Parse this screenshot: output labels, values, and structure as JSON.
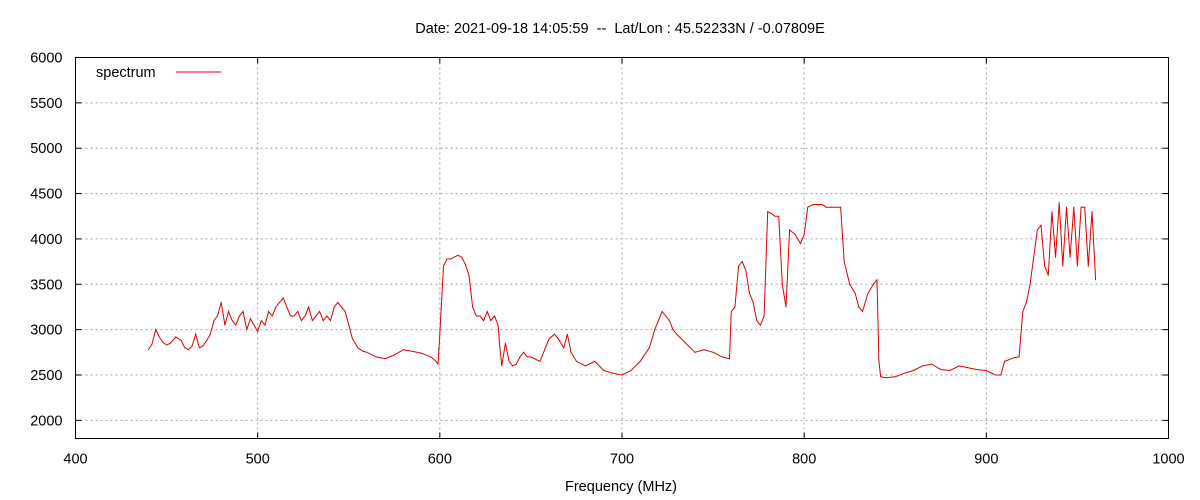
{
  "chart_data": {
    "type": "line",
    "title": "Date: 2021-09-18 14:05:59  --  Lat/Lon : 45.52233N / -0.07809E",
    "xlabel": "Frequency (MHz)",
    "ylabel": "",
    "xlim": [
      400,
      1000
    ],
    "ylim": [
      1800,
      6000
    ],
    "xticks": [
      400,
      500,
      600,
      700,
      800,
      900,
      1000
    ],
    "yticks": [
      2000,
      2500,
      3000,
      3500,
      4000,
      4500,
      5000,
      5500,
      6000
    ],
    "grid": true,
    "legend": {
      "position": "top-left"
    },
    "colors": {
      "series": "#dd0000"
    },
    "series": [
      {
        "name": "spectrum",
        "x": [
          440,
          442,
          444,
          446,
          448,
          450,
          452,
          455,
          458,
          460,
          462,
          464,
          466,
          468,
          470,
          472,
          474,
          476,
          478,
          480,
          482,
          484,
          486,
          488,
          490,
          492,
          494,
          496,
          498,
          500,
          502,
          504,
          506,
          508,
          510,
          512,
          514,
          516,
          518,
          520,
          522,
          524,
          526,
          528,
          530,
          532,
          534,
          536,
          538,
          540,
          542,
          544,
          546,
          548,
          550,
          552,
          555,
          558,
          560,
          565,
          570,
          575,
          580,
          585,
          590,
          595,
          598,
          599,
          600,
          602,
          604,
          606,
          608,
          610,
          612,
          614,
          616,
          618,
          620,
          622,
          624,
          626,
          628,
          630,
          632,
          633,
          634,
          636,
          638,
          640,
          642,
          644,
          646,
          648,
          650,
          655,
          660,
          663,
          665,
          668,
          670,
          672,
          675,
          680,
          685,
          690,
          695,
          700,
          705,
          710,
          715,
          718,
          720,
          722,
          724,
          726,
          728,
          730,
          735,
          740,
          745,
          750,
          755,
          759,
          760,
          762,
          764,
          766,
          768,
          770,
          772,
          774,
          776,
          778,
          780,
          782,
          784,
          786,
          788,
          790,
          792,
          795,
          798,
          800,
          802,
          805,
          808,
          810,
          812,
          815,
          818,
          820,
          822,
          825,
          828,
          830,
          832,
          835,
          838,
          840,
          841,
          842,
          845,
          850,
          855,
          860,
          865,
          870,
          875,
          880,
          885,
          890,
          895,
          900,
          905,
          908,
          910,
          915,
          918,
          920,
          922,
          924,
          926,
          928,
          930,
          932,
          934,
          936,
          938,
          940,
          942,
          944,
          946,
          948,
          950,
          952,
          954,
          956,
          958,
          960
        ],
        "values": [
          2780,
          2840,
          3000,
          2920,
          2860,
          2830,
          2850,
          2920,
          2880,
          2800,
          2780,
          2820,
          2950,
          2800,
          2820,
          2880,
          2950,
          3100,
          3150,
          3300,
          3050,
          3200,
          3100,
          3050,
          3150,
          3200,
          3000,
          3120,
          3050,
          2980,
          3100,
          3050,
          3200,
          3150,
          3250,
          3300,
          3350,
          3250,
          3150,
          3150,
          3200,
          3100,
          3150,
          3250,
          3100,
          3150,
          3200,
          3100,
          3150,
          3100,
          3250,
          3300,
          3250,
          3200,
          3050,
          2900,
          2800,
          2760,
          2750,
          2700,
          2680,
          2720,
          2780,
          2760,
          2740,
          2700,
          2650,
          2620,
          2950,
          3700,
          3780,
          3780,
          3800,
          3820,
          3800,
          3720,
          3600,
          3250,
          3150,
          3150,
          3100,
          3200,
          3100,
          3150,
          3050,
          2800,
          2600,
          2850,
          2650,
          2600,
          2620,
          2700,
          2750,
          2700,
          2700,
          2650,
          2900,
          2950,
          2900,
          2800,
          2950,
          2750,
          2650,
          2600,
          2650,
          2550,
          2520,
          2500,
          2550,
          2650,
          2800,
          3000,
          3100,
          3200,
          3150,
          3100,
          3000,
          2950,
          2850,
          2750,
          2780,
          2750,
          2700,
          2680,
          3200,
          3250,
          3700,
          3750,
          3650,
          3400,
          3300,
          3100,
          3050,
          3150,
          4300,
          4280,
          4250,
          4250,
          3500,
          3250,
          4100,
          4050,
          3950,
          4050,
          4350,
          4380,
          4380,
          4380,
          4350,
          4350,
          4350,
          4350,
          3750,
          3500,
          3400,
          3250,
          3200,
          3400,
          3500,
          3550,
          2650,
          2480,
          2470,
          2480,
          2520,
          2550,
          2600,
          2620,
          2560,
          2550,
          2600,
          2580,
          2560,
          2550,
          2500,
          2500,
          2650,
          2690,
          2700,
          3200,
          3300,
          3500,
          3800,
          4100,
          4150,
          3700,
          3600,
          4300,
          3800,
          4400,
          3700,
          4350,
          3800,
          4350,
          3700,
          4350,
          4350,
          3700,
          4300,
          3550
        ]
      }
    ]
  }
}
